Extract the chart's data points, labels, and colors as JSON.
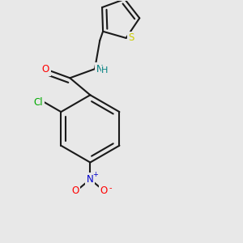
{
  "bg_color": "#e8e8e8",
  "bond_color": "#1a1a1a",
  "O_color": "#ff0000",
  "N_color": "#0000cc",
  "Cl_color": "#00aa00",
  "S_color": "#cccc00",
  "NH_color": "#008080",
  "bond_width": 1.5,
  "fig_size": [
    3.0,
    3.0
  ],
  "dpi": 100,
  "xlim": [
    0,
    1
  ],
  "ylim": [
    0,
    1
  ]
}
